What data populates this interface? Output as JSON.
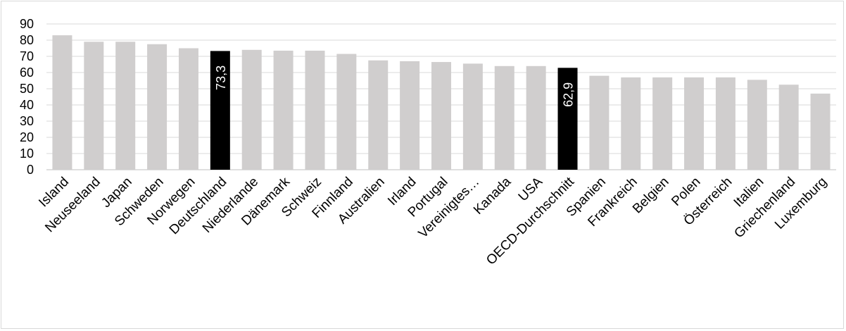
{
  "chart_data": {
    "type": "bar",
    "categories": [
      "Island",
      "Neuseeland",
      "Japan",
      "Schweden",
      "Norwegen",
      "Deutschland",
      "Niederlande",
      "Dänemark",
      "Schweiz",
      "Finnland",
      "Australien",
      "Irland",
      "Portugal",
      "Vereinigtes…",
      "Kanada",
      "USA",
      "OECD-Durchschnitt",
      "Spanien",
      "Frankreich",
      "Belgien",
      "Polen",
      "Österreich",
      "Italien",
      "Griechenland",
      "Luxemburg"
    ],
    "values": [
      83,
      79,
      79,
      77.5,
      75,
      73.3,
      74,
      73.5,
      73.5,
      71.5,
      67.5,
      67,
      66.5,
      65.5,
      64,
      64,
      62.9,
      58,
      57,
      57,
      57,
      57,
      55.5,
      52.5,
      47
    ],
    "highlight": [
      "Deutschland",
      "OECD-Durchschnitt"
    ],
    "data_labels": {
      "Deutschland": "73,3",
      "OECD-Durchschnitt": "62,9"
    },
    "yticks": [
      "0",
      "10",
      "20",
      "30",
      "40",
      "50",
      "60",
      "70",
      "80",
      "90"
    ],
    "ylim": [
      0,
      90
    ],
    "grid": true,
    "colors": {
      "bar": "#d0cece",
      "highlight": "#000000",
      "grid": "#d9d9d9",
      "label_on_highlight": "#ffffff",
      "text": "#000000"
    }
  }
}
